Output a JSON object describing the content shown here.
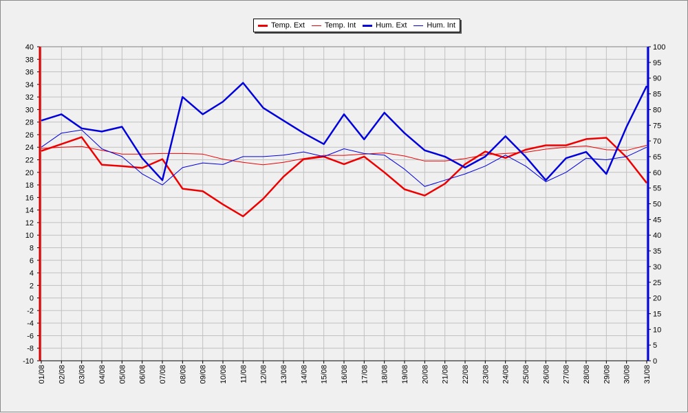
{
  "chart_data": {
    "type": "line",
    "x": [
      "01/08",
      "02/08",
      "03/08",
      "04/08",
      "05/08",
      "06/08",
      "07/08",
      "08/08",
      "09/08",
      "10/08",
      "11/08",
      "12/08",
      "13/08",
      "14/08",
      "15/08",
      "16/08",
      "17/08",
      "18/08",
      "19/08",
      "20/08",
      "21/08",
      "22/08",
      "23/08",
      "24/08",
      "25/08",
      "26/08",
      "27/08",
      "28/08",
      "29/08",
      "30/08",
      "31/08"
    ],
    "y_left": {
      "min": -10,
      "max": 40,
      "step": 2,
      "color": "#dd0000"
    },
    "y_right": {
      "min": 0,
      "max": 100,
      "step": 5,
      "color": "#0000dd"
    },
    "grid": true,
    "legend_position": "top-center",
    "series": [
      {
        "name": "Temp. Ext",
        "axis": "left",
        "color": "#ee0000",
        "width": "thick",
        "values": [
          23.4,
          24.5,
          25.6,
          21.2,
          21.0,
          20.7,
          22.1,
          17.4,
          17.0,
          14.9,
          13.0,
          15.8,
          19.3,
          22.1,
          22.5,
          21.3,
          22.5,
          20.0,
          17.3,
          16.3,
          18.2,
          21.3,
          23.3,
          22.3,
          23.6,
          24.3,
          24.3,
          25.3,
          25.5,
          22.4,
          18.3
        ]
      },
      {
        "name": "Temp. Int",
        "axis": "left",
        "color": "#ee0000",
        "width": "thin",
        "values": [
          23.8,
          24.0,
          24.1,
          23.5,
          22.9,
          22.9,
          23.0,
          23.0,
          22.9,
          22.1,
          21.6,
          21.2,
          21.6,
          22.2,
          22.7,
          22.7,
          22.9,
          23.1,
          22.6,
          21.8,
          21.8,
          22.2,
          22.8,
          23.0,
          23.2,
          23.7,
          24.0,
          24.2,
          23.6,
          23.5,
          24.3
        ]
      },
      {
        "name": "Hum. Ext",
        "axis": "right",
        "color": "#0000dd",
        "width": "thick",
        "values": [
          76.5,
          78.5,
          74,
          73,
          74.5,
          64.5,
          57.5,
          84,
          78.5,
          82.5,
          88.5,
          80.5,
          76.5,
          72.5,
          69,
          78.5,
          70.5,
          79,
          72.5,
          67,
          65,
          61.5,
          65,
          71.5,
          65,
          57.5,
          64.5,
          66.5,
          59.5,
          74.5,
          87.5
        ]
      },
      {
        "name": "Hum. Int",
        "axis": "right",
        "color": "#0000dd",
        "width": "thin",
        "values": [
          68,
          72.5,
          73.5,
          67.5,
          65,
          59.5,
          56,
          61.5,
          63,
          62.5,
          65,
          65,
          65.5,
          66.5,
          65,
          67.5,
          66,
          65.5,
          61,
          55.5,
          57.5,
          59.5,
          62,
          65.5,
          62,
          57,
          60,
          64.5,
          64,
          65,
          68
        ]
      }
    ]
  }
}
